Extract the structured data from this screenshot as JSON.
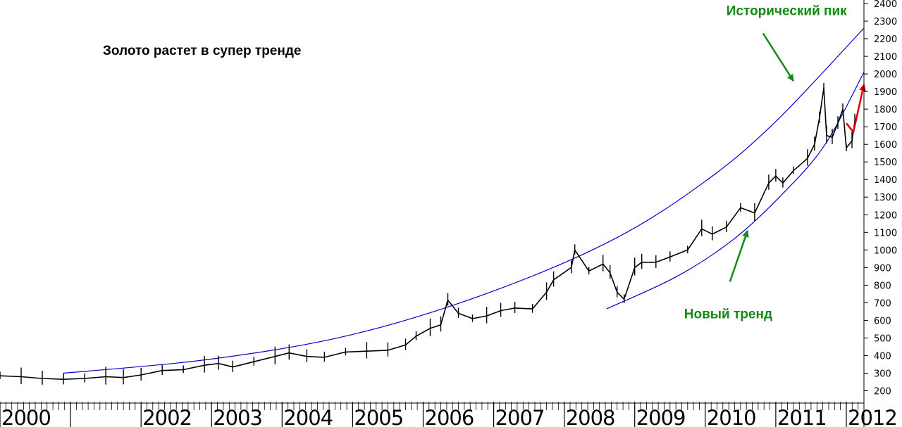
{
  "chart_data": {
    "type": "line",
    "title": "Золото растет в супер тренде",
    "y_axis": {
      "ticks": [
        200,
        300,
        400,
        500,
        600,
        700,
        800,
        900,
        1000,
        1100,
        1200,
        1300,
        1400,
        1500,
        1600,
        1700,
        1800,
        1900,
        2000,
        2100,
        2200,
        2300,
        2400
      ],
      "range": [
        130,
        2420
      ],
      "position": "right"
    },
    "x_axis": {
      "labels": [
        "2000",
        "2002",
        "2003",
        "2004",
        "2005",
        "2006",
        "2007",
        "2008",
        "2009",
        "2010",
        "2011",
        "2012"
      ],
      "years_shown": [
        2000,
        2002,
        2003,
        2004,
        2005,
        2006,
        2007,
        2008,
        2009,
        2010,
        2011,
        2012
      ],
      "range": [
        2000.0,
        2012.25
      ]
    },
    "series": [
      {
        "color": "#000000",
        "x": [
          2000.0,
          2000.3,
          2000.6,
          2000.9,
          2001.2,
          2001.5,
          2001.75,
          2002.0,
          2002.3,
          2002.6,
          2002.9,
          2003.1,
          2003.3,
          2003.6,
          2003.9,
          2004.1,
          2004.35,
          2004.6,
          2004.9,
          2005.2,
          2005.5,
          2005.75,
          2005.9,
          2006.1,
          2006.25,
          2006.35,
          2006.5,
          2006.7,
          2006.9,
          2007.1,
          2007.3,
          2007.55,
          2007.75,
          2007.85,
          2008.1,
          2008.15,
          2008.35,
          2008.55,
          2008.65,
          2008.75,
          2008.85,
          2009.0,
          2009.1,
          2009.3,
          2009.5,
          2009.75,
          2009.95,
          2010.1,
          2010.3,
          2010.5,
          2010.7,
          2010.9,
          2011.0,
          2011.1,
          2011.25,
          2011.45,
          2011.55,
          2011.62,
          2011.68,
          2011.72,
          2011.8,
          2011.88,
          2011.95,
          2012.0,
          2012.08,
          2012.12
        ],
        "values": [
          285,
          280,
          270,
          265,
          270,
          280,
          275,
          290,
          315,
          320,
          345,
          355,
          335,
          365,
          395,
          415,
          395,
          390,
          420,
          425,
          430,
          460,
          510,
          555,
          575,
          715,
          640,
          610,
          625,
          655,
          670,
          665,
          760,
          830,
          900,
          1000,
          880,
          920,
          870,
          760,
          720,
          900,
          930,
          930,
          960,
          1000,
          1120,
          1090,
          1130,
          1240,
          1210,
          1380,
          1420,
          1380,
          1450,
          1520,
          1600,
          1750,
          1920,
          1650,
          1640,
          1720,
          1800,
          1580,
          1620,
          1730
        ]
      }
    ],
    "trend_lines": [
      {
        "color": "#0000cc",
        "x": [
          2000.9,
          2003.0,
          2005.0,
          2006.95,
          2008.7,
          2010.0,
          2011.0,
          2012.25
        ],
        "values": [
          300,
          380,
          520,
          760,
          1060,
          1390,
          1730,
          2260
        ]
      },
      {
        "color": "#0000cc",
        "x": [
          2008.6,
          2009.6,
          2010.4,
          2011.1,
          2011.7,
          2012.25
        ],
        "values": [
          665,
          850,
          1060,
          1320,
          1600,
          2010
        ]
      }
    ],
    "forecast_arrow": {
      "color": "#dd0000",
      "x": [
        2012.0,
        2012.1,
        2012.25
      ],
      "values": [
        1720,
        1670,
        1940
      ]
    },
    "annotations": [
      {
        "text": "Исторический пик",
        "color": "#138a13",
        "x": 2010.3,
        "y": 2335,
        "arrow_from": [
          2010.82,
          2230
        ],
        "arrow_to": [
          2011.25,
          1960
        ]
      },
      {
        "text": "Новый тренд",
        "color": "#138a13",
        "x": 2009.7,
        "y": 612,
        "arrow_from": [
          2010.35,
          820
        ],
        "arrow_to": [
          2010.6,
          1110
        ]
      }
    ],
    "colors": {
      "title": "#ff9a66",
      "annotation": "#138a13",
      "price": "#000000",
      "trend": "#0000cc",
      "forecast": "#dd0000"
    },
    "grid": false,
    "legend": "none"
  }
}
